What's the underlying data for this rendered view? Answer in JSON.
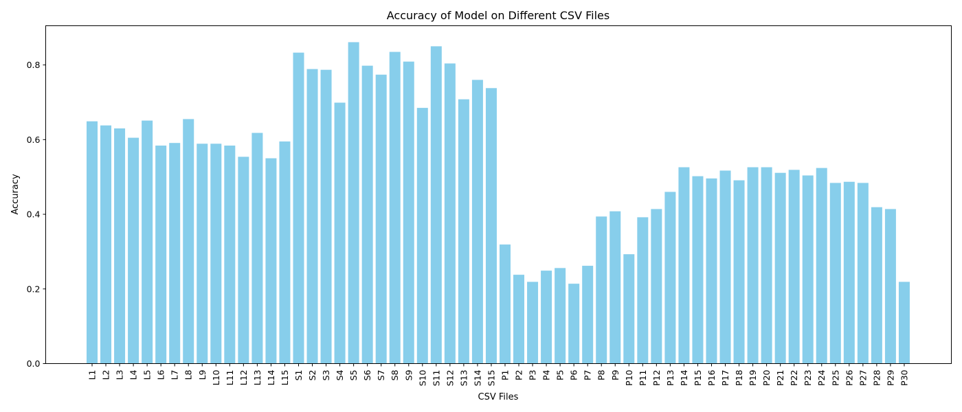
{
  "chart_data": {
    "type": "bar",
    "title": "Accuracy of Model on Different CSV Files",
    "xlabel": "CSV Files",
    "ylabel": "Accuracy",
    "ylim": [
      0,
      0.905
    ],
    "yticks": [
      "0.0",
      "0.2",
      "0.4",
      "0.6",
      "0.8"
    ],
    "ytick_values": [
      0,
      0.2,
      0.4,
      0.6,
      0.8
    ],
    "grid": false,
    "bar_color": "#87ceeb",
    "categories": [
      "L1",
      "L2",
      "L3",
      "L4",
      "L5",
      "L6",
      "L7",
      "L8",
      "L9",
      "L10",
      "L11",
      "L12",
      "L13",
      "L14",
      "L15",
      "S1",
      "S2",
      "S3",
      "S4",
      "S5",
      "S6",
      "S7",
      "S8",
      "S9",
      "S10",
      "S11",
      "S12",
      "S13",
      "S14",
      "S15",
      "P1",
      "P2",
      "P3",
      "P4",
      "P5",
      "P6",
      "P7",
      "P8",
      "P9",
      "P10",
      "P11",
      "P12",
      "P13",
      "P14",
      "P15",
      "P16",
      "P17",
      "P18",
      "P19",
      "P20",
      "P21",
      "P22",
      "P23",
      "P24",
      "P25",
      "P26",
      "P27",
      "P28",
      "P29",
      "P30"
    ],
    "values": [
      0.649,
      0.638,
      0.63,
      0.605,
      0.651,
      0.584,
      0.591,
      0.655,
      0.589,
      0.589,
      0.584,
      0.554,
      0.618,
      0.55,
      0.595,
      0.833,
      0.789,
      0.787,
      0.699,
      0.861,
      0.798,
      0.774,
      0.835,
      0.809,
      0.685,
      0.85,
      0.804,
      0.708,
      0.76,
      0.738,
      0.319,
      0.238,
      0.219,
      0.249,
      0.256,
      0.214,
      0.262,
      0.394,
      0.408,
      0.293,
      0.392,
      0.414,
      0.46,
      0.526,
      0.502,
      0.496,
      0.517,
      0.491,
      0.526,
      0.526,
      0.511,
      0.519,
      0.504,
      0.524,
      0.484,
      0.487,
      0.484,
      0.419,
      0.414,
      0.219
    ]
  }
}
